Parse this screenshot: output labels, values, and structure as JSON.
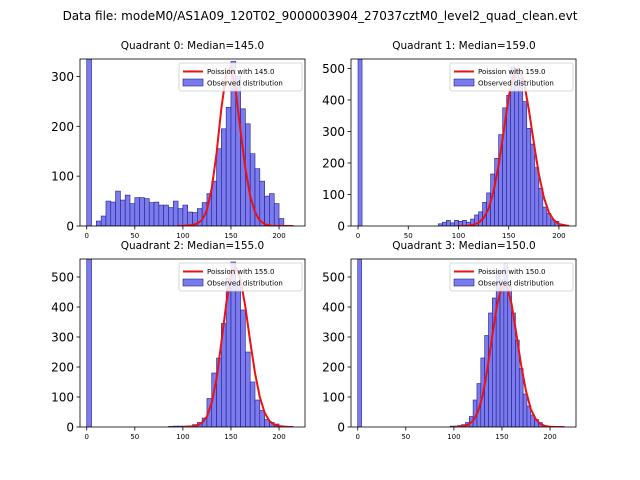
{
  "figure": {
    "suptitle": "Data file: modeM0/AS1A09_120T02_9000003904_27037cztM0_level2_quad_clean.evt"
  },
  "colors": {
    "bar_fill": "#7b7bee",
    "bar_edge": "#1e1e8a",
    "poisson_line": "#ee1111",
    "axis": "#000000"
  },
  "chart_data": [
    {
      "type": "bar",
      "title": "Quadrant 0: Median=145.0",
      "median": 145.0,
      "legend": [
        "Poission with 145.0",
        "Observed distribution"
      ],
      "legend_position": "top-right",
      "xlim": [
        -7,
        227
      ],
      "ylim": [
        0,
        335
      ],
      "xticks": [
        0,
        50,
        100,
        150,
        200
      ],
      "yticks": [
        0,
        100,
        200,
        300
      ],
      "bin_width": 5,
      "bin_left_edges": [
        0,
        5,
        10,
        15,
        20,
        25,
        30,
        35,
        40,
        45,
        50,
        55,
        60,
        65,
        70,
        75,
        80,
        85,
        90,
        95,
        100,
        105,
        110,
        115,
        120,
        125,
        130,
        135,
        140,
        145,
        150,
        155,
        160,
        165,
        170,
        175,
        180,
        185,
        190,
        195,
        200,
        205,
        210
      ],
      "observed": [
        335,
        0,
        10,
        20,
        50,
        48,
        70,
        52,
        62,
        45,
        57,
        57,
        55,
        47,
        48,
        42,
        42,
        37,
        50,
        35,
        42,
        28,
        27,
        35,
        47,
        65,
        90,
        155,
        195,
        238,
        330,
        300,
        235,
        205,
        145,
        115,
        90,
        60,
        65,
        45,
        15,
        0,
        0
      ],
      "poisson_curve_x": [
        95,
        105,
        110,
        115,
        120,
        125,
        130,
        135,
        140,
        145,
        150,
        155,
        160,
        165,
        170,
        175,
        180,
        185,
        190,
        195,
        200,
        205,
        215
      ],
      "poisson_curve_y": [
        0,
        1,
        2,
        5,
        12,
        32,
        75,
        145,
        235,
        305,
        320,
        270,
        190,
        115,
        60,
        28,
        11,
        4,
        1,
        0,
        0,
        0,
        0
      ]
    },
    {
      "type": "bar",
      "title": "Quadrant 1: Median=159.0",
      "median": 159.0,
      "legend": [
        "Poission with 159.0",
        "Observed distribution"
      ],
      "legend_position": "top-right",
      "xlim": [
        -7,
        217
      ],
      "ylim": [
        0,
        530
      ],
      "xticks": [
        0,
        50,
        100,
        150,
        200
      ],
      "yticks": [
        0,
        100,
        200,
        300,
        400,
        500
      ],
      "bin_width": 4,
      "bin_left_edges": [
        0,
        4,
        8,
        12,
        16,
        20,
        24,
        28,
        32,
        36,
        40,
        44,
        48,
        52,
        56,
        60,
        64,
        68,
        72,
        76,
        80,
        84,
        88,
        92,
        96,
        100,
        104,
        108,
        112,
        116,
        120,
        124,
        128,
        132,
        136,
        140,
        144,
        148,
        152,
        156,
        160,
        164,
        168,
        172,
        176,
        180,
        184,
        188,
        192,
        196,
        200,
        204
      ],
      "observed": [
        530,
        0,
        0,
        0,
        0,
        0,
        0,
        0,
        0,
        0,
        0,
        0,
        0,
        0,
        0,
        0,
        0,
        0,
        0,
        0,
        7,
        12,
        18,
        10,
        18,
        15,
        18,
        12,
        22,
        35,
        45,
        75,
        105,
        165,
        215,
        290,
        375,
        415,
        505,
        500,
        470,
        395,
        310,
        260,
        185,
        120,
        60,
        40,
        20,
        15,
        5,
        2
      ],
      "poisson_curve_x": [
        100,
        110,
        115,
        120,
        125,
        130,
        135,
        140,
        145,
        150,
        155,
        160,
        165,
        170,
        175,
        180,
        185,
        190,
        195,
        200,
        210
      ],
      "poisson_curve_y": [
        0,
        1,
        4,
        10,
        25,
        55,
        110,
        195,
        300,
        410,
        480,
        500,
        460,
        370,
        265,
        165,
        90,
        43,
        18,
        6,
        0
      ]
    },
    {
      "type": "bar",
      "title": "Quadrant 2: Median=155.0",
      "median": 155.0,
      "legend": [
        "Poission with 155.0",
        "Observed distribution"
      ],
      "legend_position": "top-right",
      "xlim": [
        -7,
        227
      ],
      "ylim": [
        0,
        560
      ],
      "xticks": [
        0,
        50,
        100,
        150,
        200
      ],
      "yticks": [
        0,
        100,
        200,
        300,
        400,
        500
      ],
      "bin_width": 5,
      "bin_left_edges": [
        0,
        5,
        10,
        15,
        20,
        25,
        30,
        35,
        40,
        45,
        50,
        55,
        60,
        65,
        70,
        75,
        80,
        85,
        90,
        95,
        100,
        105,
        110,
        115,
        120,
        125,
        130,
        135,
        140,
        145,
        150,
        155,
        160,
        165,
        170,
        175,
        180,
        185,
        190,
        195,
        200,
        205,
        210,
        215
      ],
      "observed": [
        560,
        0,
        0,
        0,
        0,
        0,
        0,
        0,
        0,
        0,
        0,
        0,
        0,
        0,
        0,
        0,
        0,
        2,
        3,
        3,
        3,
        4,
        8,
        15,
        30,
        95,
        180,
        230,
        345,
        495,
        550,
        475,
        390,
        250,
        150,
        90,
        55,
        25,
        15,
        10,
        3,
        2,
        0,
        0
      ],
      "poisson_curve_x": [
        100,
        110,
        115,
        120,
        125,
        130,
        135,
        140,
        145,
        150,
        155,
        160,
        165,
        170,
        175,
        180,
        185,
        190,
        195,
        200,
        210,
        215
      ],
      "poisson_curve_y": [
        0,
        2,
        5,
        14,
        35,
        80,
        160,
        280,
        410,
        505,
        535,
        490,
        400,
        285,
        180,
        100,
        48,
        20,
        8,
        3,
        0,
        0
      ]
    },
    {
      "type": "bar",
      "title": "Quadrant 3: Median=150.0",
      "median": 150.0,
      "legend": [
        "Poission with 150.0",
        "Observed distribution"
      ],
      "legend_position": "top-right",
      "xlim": [
        -7,
        227
      ],
      "ylim": [
        0,
        560
      ],
      "xticks": [
        0,
        50,
        100,
        150,
        200
      ],
      "yticks": [
        0,
        100,
        200,
        300,
        400,
        500
      ],
      "bin_width": 4,
      "bin_left_edges": [
        0,
        4,
        8,
        12,
        16,
        20,
        24,
        28,
        32,
        36,
        40,
        44,
        48,
        52,
        56,
        60,
        64,
        68,
        72,
        76,
        80,
        84,
        88,
        92,
        96,
        100,
        104,
        108,
        112,
        116,
        120,
        124,
        128,
        132,
        136,
        140,
        144,
        148,
        152,
        156,
        160,
        164,
        168,
        172,
        176,
        180,
        184,
        188,
        192,
        196,
        200,
        204
      ],
      "observed": [
        560,
        0,
        0,
        0,
        0,
        0,
        0,
        0,
        0,
        0,
        0,
        0,
        0,
        0,
        0,
        0,
        0,
        0,
        0,
        0,
        0,
        0,
        0,
        0,
        3,
        3,
        5,
        8,
        15,
        35,
        90,
        145,
        230,
        305,
        380,
        430,
        520,
        490,
        545,
        470,
        380,
        290,
        195,
        110,
        70,
        40,
        25,
        15,
        5,
        3,
        1,
        0
      ],
      "poisson_curve_x": [
        100,
        105,
        110,
        115,
        120,
        125,
        130,
        135,
        140,
        145,
        150,
        155,
        160,
        165,
        170,
        175,
        180,
        185,
        190,
        195,
        200,
        205,
        215
      ],
      "poisson_curve_y": [
        0,
        1,
        3,
        8,
        20,
        50,
        105,
        195,
        305,
        410,
        470,
        470,
        410,
        310,
        205,
        120,
        60,
        27,
        10,
        3,
        1,
        0,
        0
      ]
    }
  ]
}
